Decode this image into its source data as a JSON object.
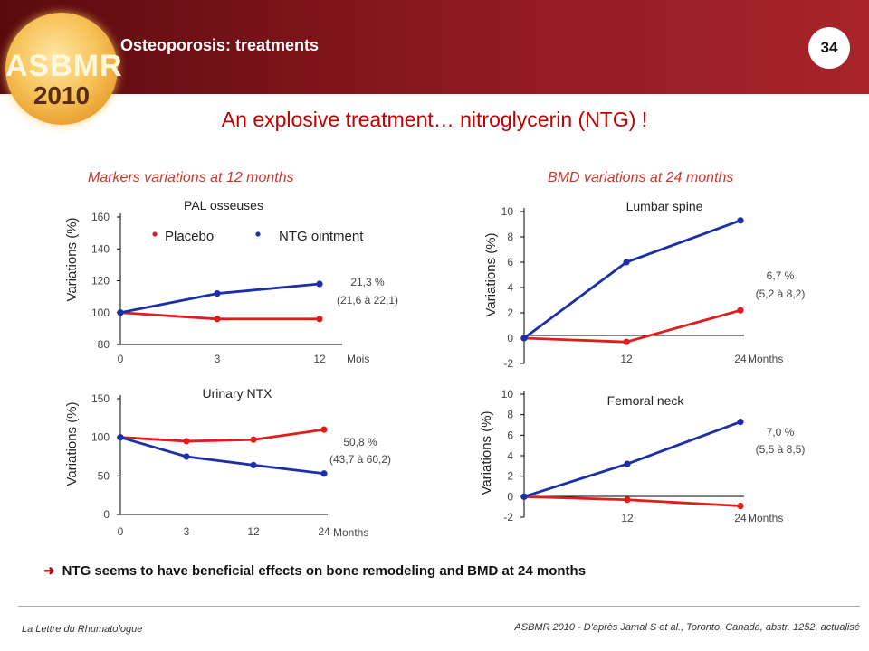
{
  "header": {
    "section_title": "Osteoporosis: treatments",
    "page_number": "34",
    "logo_text_1": "ASBMR",
    "logo_text_2": "2010"
  },
  "main_title": "An explosive treatment…  nitroglycerin (NTG) !",
  "subtitle_left": "Markers variations at 12 months",
  "subtitle_right": "BMD variations at 24 months",
  "conclusion": "NTG seems to have beneficial effects on bone remodeling and BMD at 24 months",
  "footer": {
    "left": "La Lettre du Rhumatologue",
    "right": "ASBMR 2010 - D'après Jamal S et al., Toronto, Canada, abstr. 1252, actualisé"
  },
  "colors": {
    "placebo": "#e01c1c",
    "ntg": "#1a2fa8",
    "axis": "#000000",
    "label": "#444444"
  },
  "legend": {
    "placebo": "Placebo",
    "ntg": "NTG ointment"
  },
  "chart_data": [
    {
      "type": "line",
      "title": "PAL osseuses",
      "ylabel": "Variations (%)",
      "xlabel": "Mois",
      "categories": [
        "0",
        "3",
        "12"
      ],
      "yticks": [
        80,
        100,
        120,
        140,
        160
      ],
      "ylim": [
        80,
        160
      ],
      "series": [
        {
          "name": "Placebo",
          "values": [
            100,
            96,
            96
          ]
        },
        {
          "name": "NTG ointment",
          "values": [
            100,
            112,
            118
          ]
        }
      ],
      "annotation": [
        "21,3 %",
        "(21,6 à 22,1)"
      ],
      "legend": "top"
    },
    {
      "type": "line",
      "title": "Urinary NTX",
      "ylabel": "Variations (%)",
      "xlabel": "Months",
      "categories": [
        "0",
        "3",
        "12",
        "24"
      ],
      "yticks": [
        0,
        50,
        100,
        150
      ],
      "ylim": [
        0,
        150
      ],
      "series": [
        {
          "name": "Placebo",
          "values": [
            100,
            95,
            97,
            110
          ]
        },
        {
          "name": "NTG ointment",
          "values": [
            100,
            75,
            64,
            53
          ]
        }
      ],
      "annotation": [
        "50,8 %",
        "(43,7 à 60,2)"
      ]
    },
    {
      "type": "line",
      "title": "Lumbar spine",
      "ylabel": "Variations (%)",
      "xlabel": "Months",
      "categories": [
        "0",
        "12",
        "24"
      ],
      "xticklabels": [
        "",
        "12",
        "24"
      ],
      "yticks": [
        -2,
        0,
        2,
        4,
        6,
        8,
        10
      ],
      "ylim": [
        -2,
        10
      ],
      "series": [
        {
          "name": "Placebo",
          "values": [
            0,
            -0.3,
            2.2
          ]
        },
        {
          "name": "NTG ointment",
          "values": [
            0,
            6,
            9.3
          ]
        }
      ],
      "annotation": [
        "6,7 %",
        "(5,2 à 8,2)"
      ]
    },
    {
      "type": "line",
      "title": "Femoral neck",
      "ylabel": "Variations (%)",
      "xlabel": "Months",
      "categories": [
        "0",
        "12",
        "24"
      ],
      "xticklabels": [
        "",
        "12",
        "24"
      ],
      "yticks": [
        -2,
        0,
        2,
        4,
        6,
        8,
        10
      ],
      "ylim": [
        -2,
        10
      ],
      "series": [
        {
          "name": "Placebo",
          "values": [
            0,
            -0.3,
            -0.9
          ]
        },
        {
          "name": "NTG ointment",
          "values": [
            0,
            3.2,
            7.3
          ]
        }
      ],
      "annotation": [
        "7,0 %",
        "(5,5 à 8,5)"
      ]
    }
  ]
}
